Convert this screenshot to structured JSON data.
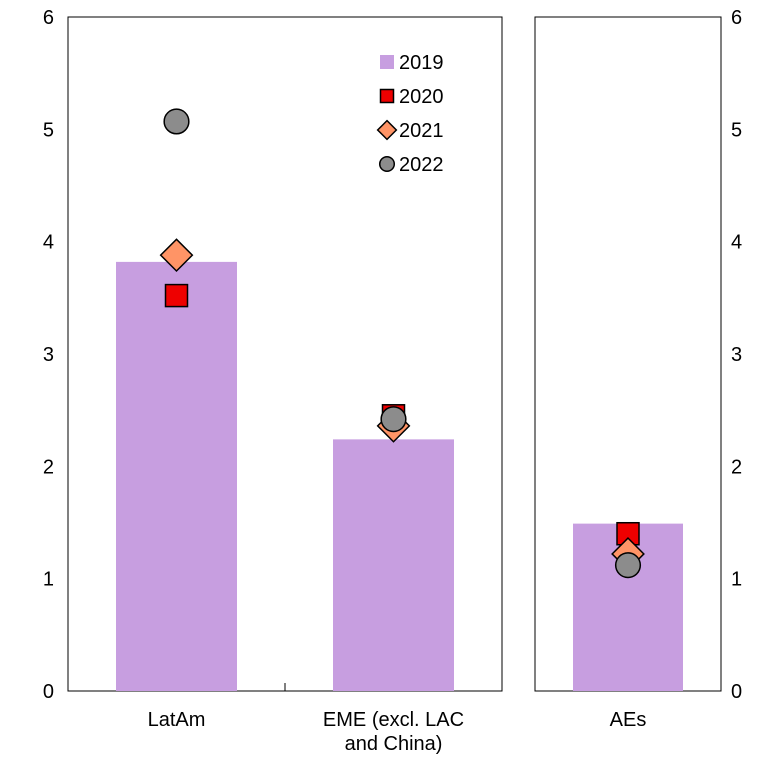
{
  "chart_data": [
    {
      "type": "bar",
      "panel": "left",
      "categories": [
        "LatAm",
        "EME (excl. LAC\nand China)"
      ],
      "ylim": [
        0,
        6
      ],
      "yticks": [
        0,
        1,
        2,
        3,
        4,
        5,
        6
      ],
      "axis_side": "left",
      "series": [
        {
          "name": "2019",
          "kind": "bar",
          "marker": "square",
          "color": "#c79ee0",
          "values": [
            3.82,
            2.24
          ]
        },
        {
          "name": "2020",
          "kind": "marker",
          "marker": "square",
          "color": "#ee0000",
          "values": [
            3.52,
            2.45
          ]
        },
        {
          "name": "2021",
          "kind": "marker",
          "marker": "diamond",
          "color": "#ff9466",
          "values": [
            3.88,
            2.36
          ]
        },
        {
          "name": "2022",
          "kind": "marker",
          "marker": "circle",
          "color": "#8c8c8c",
          "values": [
            5.07,
            2.42
          ]
        }
      ],
      "legend": "top-right"
    },
    {
      "type": "bar",
      "panel": "right",
      "categories": [
        "AEs"
      ],
      "ylim": [
        0,
        6
      ],
      "yticks": [
        0,
        1,
        2,
        3,
        4,
        5,
        6
      ],
      "axis_side": "right",
      "series": [
        {
          "name": "2019",
          "kind": "bar",
          "marker": "square",
          "color": "#c79ee0",
          "values": [
            1.49
          ]
        },
        {
          "name": "2020",
          "kind": "marker",
          "marker": "square",
          "color": "#ee0000",
          "values": [
            1.4
          ]
        },
        {
          "name": "2021",
          "kind": "marker",
          "marker": "diamond",
          "color": "#ff9466",
          "values": [
            1.22
          ]
        },
        {
          "name": "2022",
          "kind": "marker",
          "marker": "circle",
          "color": "#8c8c8c",
          "values": [
            1.12
          ]
        }
      ]
    }
  ]
}
